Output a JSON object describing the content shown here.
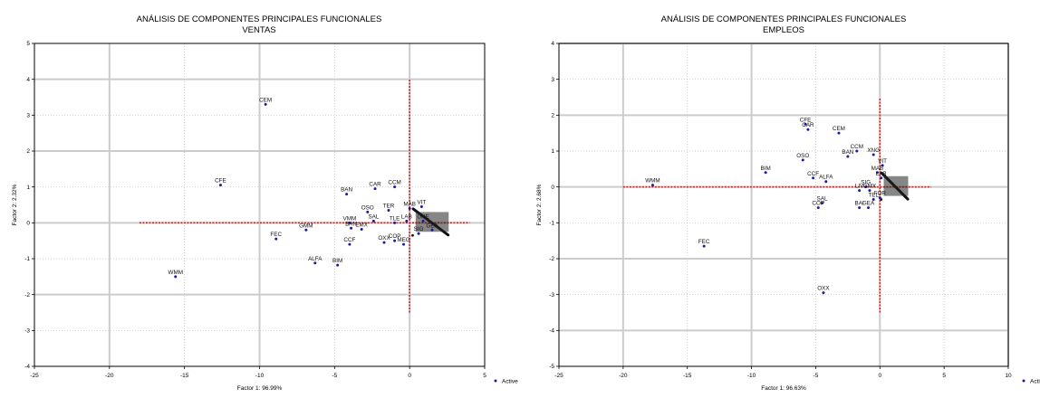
{
  "chart_data": [
    {
      "type": "scatter",
      "title": "ANÁLISIS DE COMPONENTES PRINCIPALES FUNCIONALES",
      "subtitle": "VENTAS",
      "xlabel": "Factor 1: 96.99%",
      "ylabel": "Factor 2: 2.32%",
      "xlim": [
        -25,
        5
      ],
      "ylim": [
        -4,
        5
      ],
      "xticks": [
        -25,
        -20,
        -15,
        -10,
        -5,
        0,
        5
      ],
      "yticks": [
        -4,
        -3,
        -2,
        -1,
        0,
        1,
        2,
        3,
        4,
        5
      ],
      "major_grid_x": [
        -20,
        -10,
        0
      ],
      "major_grid_y": [
        -2,
        0,
        2,
        4
      ],
      "grid": true,
      "legend": {
        "label": "Active",
        "placement": "bottom-right"
      },
      "cross_lines": {
        "h": [
          -18,
          4,
          0
        ],
        "v": [
          0,
          -2.5,
          4
        ]
      },
      "series": [
        {
          "points": [
            {
              "label": "CEM",
              "x": -9.6,
              "y": 3.3
            },
            {
              "label": "CFE",
              "x": -12.6,
              "y": 1.05
            },
            {
              "label": "WMM",
              "x": -15.6,
              "y": -1.5
            },
            {
              "label": "FEC",
              "x": -8.9,
              "y": -0.45
            },
            {
              "label": "GMM",
              "x": -6.9,
              "y": -0.2
            },
            {
              "label": "ALFA",
              "x": -6.3,
              "y": -1.12
            },
            {
              "label": "BIM",
              "x": -4.8,
              "y": -1.18
            },
            {
              "label": "BAN",
              "x": -4.2,
              "y": 0.8
            },
            {
              "label": "CAR",
              "x": -2.3,
              "y": 0.95
            },
            {
              "label": "CCM",
              "x": -1.0,
              "y": 1.0
            },
            {
              "label": "TER",
              "x": -1.4,
              "y": 0.35
            },
            {
              "label": "OSO",
              "x": -2.8,
              "y": 0.3
            },
            {
              "label": "VMM",
              "x": -4.0,
              "y": 0.0
            },
            {
              "label": "SAL",
              "x": -2.4,
              "y": 0.05
            },
            {
              "label": "BAN",
              "x": -3.9,
              "y": -0.15
            },
            {
              "label": "EMX",
              "x": -3.2,
              "y": -0.18
            },
            {
              "label": "CCF",
              "x": -4.0,
              "y": -0.6
            },
            {
              "label": "OXX",
              "x": -1.7,
              "y": -0.55
            },
            {
              "label": "COP",
              "x": -1.0,
              "y": -0.5
            },
            {
              "label": "MEG",
              "x": -0.4,
              "y": -0.6
            },
            {
              "label": "SIG",
              "x": 0.6,
              "y": -0.3
            },
            {
              "label": "LAB",
              "x": -0.2,
              "y": 0.05
            },
            {
              "label": "TLE",
              "x": -1.0,
              "y": 0.0
            },
            {
              "label": "MAB",
              "x": 0.0,
              "y": 0.4
            },
            {
              "label": "VIT",
              "x": 0.8,
              "y": 0.45
            },
            {
              "label": "UNE",
              "x": 0.9,
              "y": 0.05
            },
            {
              "label": "GEA",
              "x": 1.5,
              "y": -0.2
            }
          ]
        }
      ]
    },
    {
      "type": "scatter",
      "title": "ANÁLISIS DE COMPONENTES PRINCIPALES FUNCIONALES",
      "subtitle": "EMPLEOS",
      "xlabel": "Factor 1: 96.63%",
      "ylabel": "Factor 2: 2.68%",
      "xlim": [
        -25,
        10
      ],
      "ylim": [
        -5,
        4
      ],
      "xticks": [
        -25,
        -20,
        -15,
        -10,
        -5,
        0,
        5,
        10
      ],
      "yticks": [
        -5,
        -4,
        -3,
        -2,
        -1,
        0,
        1,
        2,
        3,
        4
      ],
      "major_grid_x": [
        -20,
        -10,
        0,
        10
      ],
      "major_grid_y": [
        -4,
        -2,
        0,
        2,
        4
      ],
      "grid": true,
      "legend": {
        "label": "Active",
        "placement": "bottom-right"
      },
      "cross_lines": {
        "h": [
          -20,
          4,
          0
        ],
        "v": [
          0,
          -3.5,
          2.5
        ]
      },
      "series": [
        {
          "points": [
            {
              "label": "WMM",
              "x": -17.7,
              "y": 0.05
            },
            {
              "label": "FEC",
              "x": -13.7,
              "y": -1.65
            },
            {
              "label": "OXX",
              "x": -4.4,
              "y": -2.95
            },
            {
              "label": "CFE",
              "x": -5.8,
              "y": 1.75
            },
            {
              "label": "CAR",
              "x": -5.6,
              "y": 1.6
            },
            {
              "label": "CEM",
              "x": -3.2,
              "y": 1.5
            },
            {
              "label": "CCM",
              "x": -1.8,
              "y": 1.0
            },
            {
              "label": "BAN",
              "x": -2.5,
              "y": 0.85
            },
            {
              "label": "XNG",
              "x": -0.5,
              "y": 0.9
            },
            {
              "label": "OSO",
              "x": -6.0,
              "y": 0.75
            },
            {
              "label": "BIM",
              "x": -8.9,
              "y": 0.4
            },
            {
              "label": "CCF",
              "x": -5.2,
              "y": 0.25
            },
            {
              "label": "ALFA",
              "x": -4.2,
              "y": 0.15
            },
            {
              "label": "VIT",
              "x": 0.2,
              "y": 0.6
            },
            {
              "label": "MAB",
              "x": -0.2,
              "y": 0.4
            },
            {
              "label": "LAB",
              "x": 0.1,
              "y": 0.25
            },
            {
              "label": "SIG",
              "x": -1.1,
              "y": 0.0
            },
            {
              "label": "LIV",
              "x": -1.6,
              "y": -0.1
            },
            {
              "label": "GMX",
              "x": -0.8,
              "y": -0.1
            },
            {
              "label": "TEL",
              "x": -0.5,
              "y": -0.35
            },
            {
              "label": "FOR",
              "x": 0.0,
              "y": -0.3
            },
            {
              "label": "SAL",
              "x": -4.5,
              "y": -0.45
            },
            {
              "label": "COP",
              "x": -4.8,
              "y": -0.58
            },
            {
              "label": "BAI",
              "x": -1.6,
              "y": -0.58
            },
            {
              "label": "GEA",
              "x": -0.9,
              "y": -0.58
            }
          ]
        }
      ]
    }
  ]
}
